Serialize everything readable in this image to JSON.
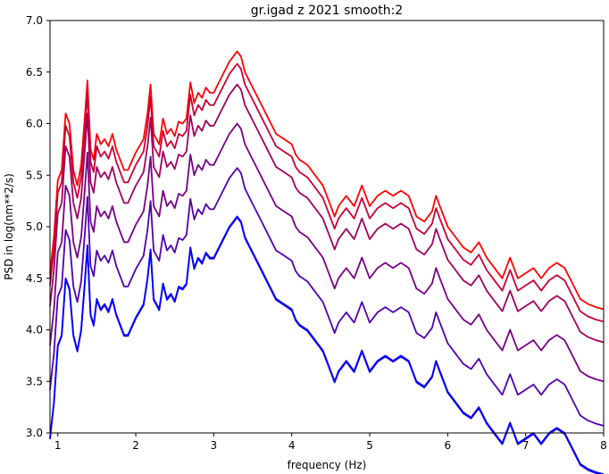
{
  "chart_data": {
    "type": "line",
    "title": "gr.igad z 2021 smooth:2",
    "xlabel": "frequency (Hz)",
    "ylabel": "PSD in log(nm**2/s)",
    "xlim": [
      0.9,
      8.0
    ],
    "ylim": [
      3.0,
      7.0
    ],
    "xticks": [
      1,
      2,
      3,
      4,
      5,
      6,
      7,
      8
    ],
    "yticks": [
      "3.0",
      "3.5",
      "4.0",
      "4.5",
      "5.0",
      "5.5",
      "6.0",
      "6.5",
      "7.0"
    ],
    "grid": false,
    "legend": "none",
    "colors": [
      "#ff0000",
      "#c80037",
      "#a0005f",
      "#780087",
      "#5000af",
      "#2800d7",
      "#0000ff"
    ],
    "series_offsets": [
      0.0,
      -0.12,
      -0.32,
      -0.7,
      -1.13,
      -1.61,
      -1.6
    ],
    "series": [
      {
        "x": [
          0.9,
          0.95,
          1.0,
          1.05,
          1.1,
          1.15,
          1.2,
          1.25,
          1.3,
          1.35,
          1.38,
          1.42,
          1.46,
          1.5,
          1.55,
          1.6,
          1.65,
          1.7,
          1.75,
          1.8,
          1.85,
          1.9,
          2.0,
          2.1,
          2.15,
          2.19,
          2.23,
          2.3,
          2.35,
          2.4,
          2.45,
          2.5,
          2.55,
          2.6,
          2.65,
          2.7,
          2.75,
          2.8,
          2.85,
          2.9,
          2.95,
          3.0,
          3.1,
          3.2,
          3.3,
          3.35,
          3.4,
          3.5,
          3.6,
          3.7,
          3.8,
          3.9,
          4.0,
          4.05,
          4.1,
          4.2,
          4.3,
          4.4,
          4.5,
          4.55,
          4.6,
          4.7,
          4.8,
          4.9,
          5.0,
          5.1,
          5.2,
          5.3,
          5.4,
          5.5,
          5.6,
          5.7,
          5.8,
          5.85,
          5.9,
          6.0,
          6.1,
          6.2,
          6.3,
          6.4,
          6.5,
          6.6,
          6.7,
          6.8,
          6.9,
          7.0,
          7.1,
          7.2,
          7.3,
          7.4,
          7.5,
          7.6,
          7.7,
          7.8,
          7.9,
          8.0
        ],
        "y": [
          4.55,
          4.9,
          5.45,
          5.55,
          6.1,
          6.0,
          5.55,
          5.4,
          5.6,
          6.1,
          6.42,
          5.75,
          5.65,
          5.9,
          5.8,
          5.85,
          5.78,
          5.9,
          5.75,
          5.65,
          5.55,
          5.55,
          5.72,
          5.85,
          6.1,
          6.38,
          5.9,
          5.8,
          6.05,
          5.9,
          5.95,
          5.88,
          6.02,
          6.0,
          6.05,
          6.4,
          6.2,
          6.3,
          6.25,
          6.35,
          6.3,
          6.3,
          6.45,
          6.6,
          6.7,
          6.65,
          6.5,
          6.35,
          6.2,
          6.05,
          5.9,
          5.85,
          5.8,
          5.7,
          5.65,
          5.6,
          5.5,
          5.4,
          5.2,
          5.1,
          5.2,
          5.3,
          5.2,
          5.4,
          5.2,
          5.3,
          5.35,
          5.3,
          5.35,
          5.3,
          5.1,
          5.05,
          5.15,
          5.3,
          5.2,
          5.0,
          4.9,
          4.8,
          4.75,
          4.85,
          4.7,
          4.6,
          4.5,
          4.7,
          4.5,
          4.55,
          4.6,
          4.5,
          4.6,
          4.65,
          4.6,
          4.45,
          4.3,
          4.25,
          4.22,
          4.2
        ]
      }
    ]
  }
}
